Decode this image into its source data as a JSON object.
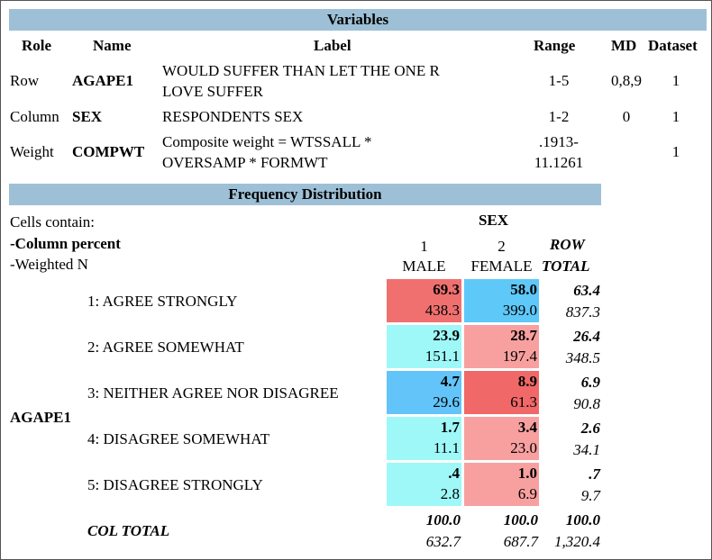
{
  "variables": {
    "title": "Variables",
    "headers": {
      "role": "Role",
      "name": "Name",
      "label": "Label",
      "range": "Range",
      "md": "MD",
      "dataset": "Dataset"
    },
    "rows": [
      {
        "role": "Row",
        "name": "AGAPE1",
        "label1": "WOULD SUFFER THAN LET THE ONE R",
        "label2": "LOVE SUFFER",
        "range1": "1-5",
        "range2": "",
        "md": "0,8,9",
        "dataset": "1"
      },
      {
        "role": "Column",
        "name": "SEX",
        "label1": "RESPONDENTS SEX",
        "label2": "",
        "range1": "1-2",
        "range2": "",
        "md": "0",
        "dataset": "1"
      },
      {
        "role": "Weight",
        "name": "COMPWT",
        "label1": "Composite weight = WTSSALL *",
        "label2": "OVERSAMP * FORMWT",
        "range1": ".1913-",
        "range2": "11.1261",
        "md": "",
        "dataset": "1"
      }
    ]
  },
  "freq": {
    "title": "Frequency Distribution",
    "cells_contain": "Cells contain:",
    "legend1": "-Column percent",
    "legend2": "-Weighted N",
    "col_var": "SEX",
    "col1_code": "1",
    "col1_name": "MALE",
    "col2_code": "2",
    "col2_name": "FEMALE",
    "row_total_1": "ROW",
    "row_total_2": "TOTAL",
    "row_var": "AGAPE1",
    "rows": [
      {
        "label": "1: AGREE STRONGLY",
        "m_pct": "69.3",
        "m_n": "438.3",
        "f_pct": "58.0",
        "f_n": "399.0",
        "t_pct": "63.4",
        "t_n": "837.3",
        "m_color": "#f07070",
        "f_color": "#5ec8f8"
      },
      {
        "label": "2: AGREE SOMEWHAT",
        "m_pct": "23.9",
        "m_n": "151.1",
        "f_pct": "28.7",
        "f_n": "197.4",
        "t_pct": "26.4",
        "t_n": "348.5",
        "m_color": "#9ef8f8",
        "f_color": "#f8a0a0"
      },
      {
        "label": "3: NEITHER AGREE NOR DISAGREE",
        "m_pct": "4.7",
        "m_n": "29.6",
        "f_pct": "8.9",
        "f_n": "61.3",
        "t_pct": "6.9",
        "t_n": "90.8",
        "m_color": "#62c4f8",
        "f_color": "#f06868"
      },
      {
        "label": "4: DISAGREE SOMEWHAT",
        "m_pct": "1.7",
        "m_n": "11.1",
        "f_pct": "3.4",
        "f_n": "23.0",
        "t_pct": "2.6",
        "t_n": "34.1",
        "m_color": "#9ef8f8",
        "f_color": "#f8a0a0"
      },
      {
        "label": "5: DISAGREE STRONGLY",
        "m_pct": ".4",
        "m_n": "2.8",
        "f_pct": "1.0",
        "f_n": "6.9",
        "t_pct": ".7",
        "t_n": "9.7",
        "m_color": "#9ef8f8",
        "f_color": "#f8a0a0"
      }
    ],
    "col_total": {
      "label": "COL TOTAL",
      "m_pct": "100.0",
      "m_n": "632.7",
      "f_pct": "100.0",
      "f_n": "687.7",
      "t_pct": "100.0",
      "t_n": "1,320.4"
    }
  }
}
